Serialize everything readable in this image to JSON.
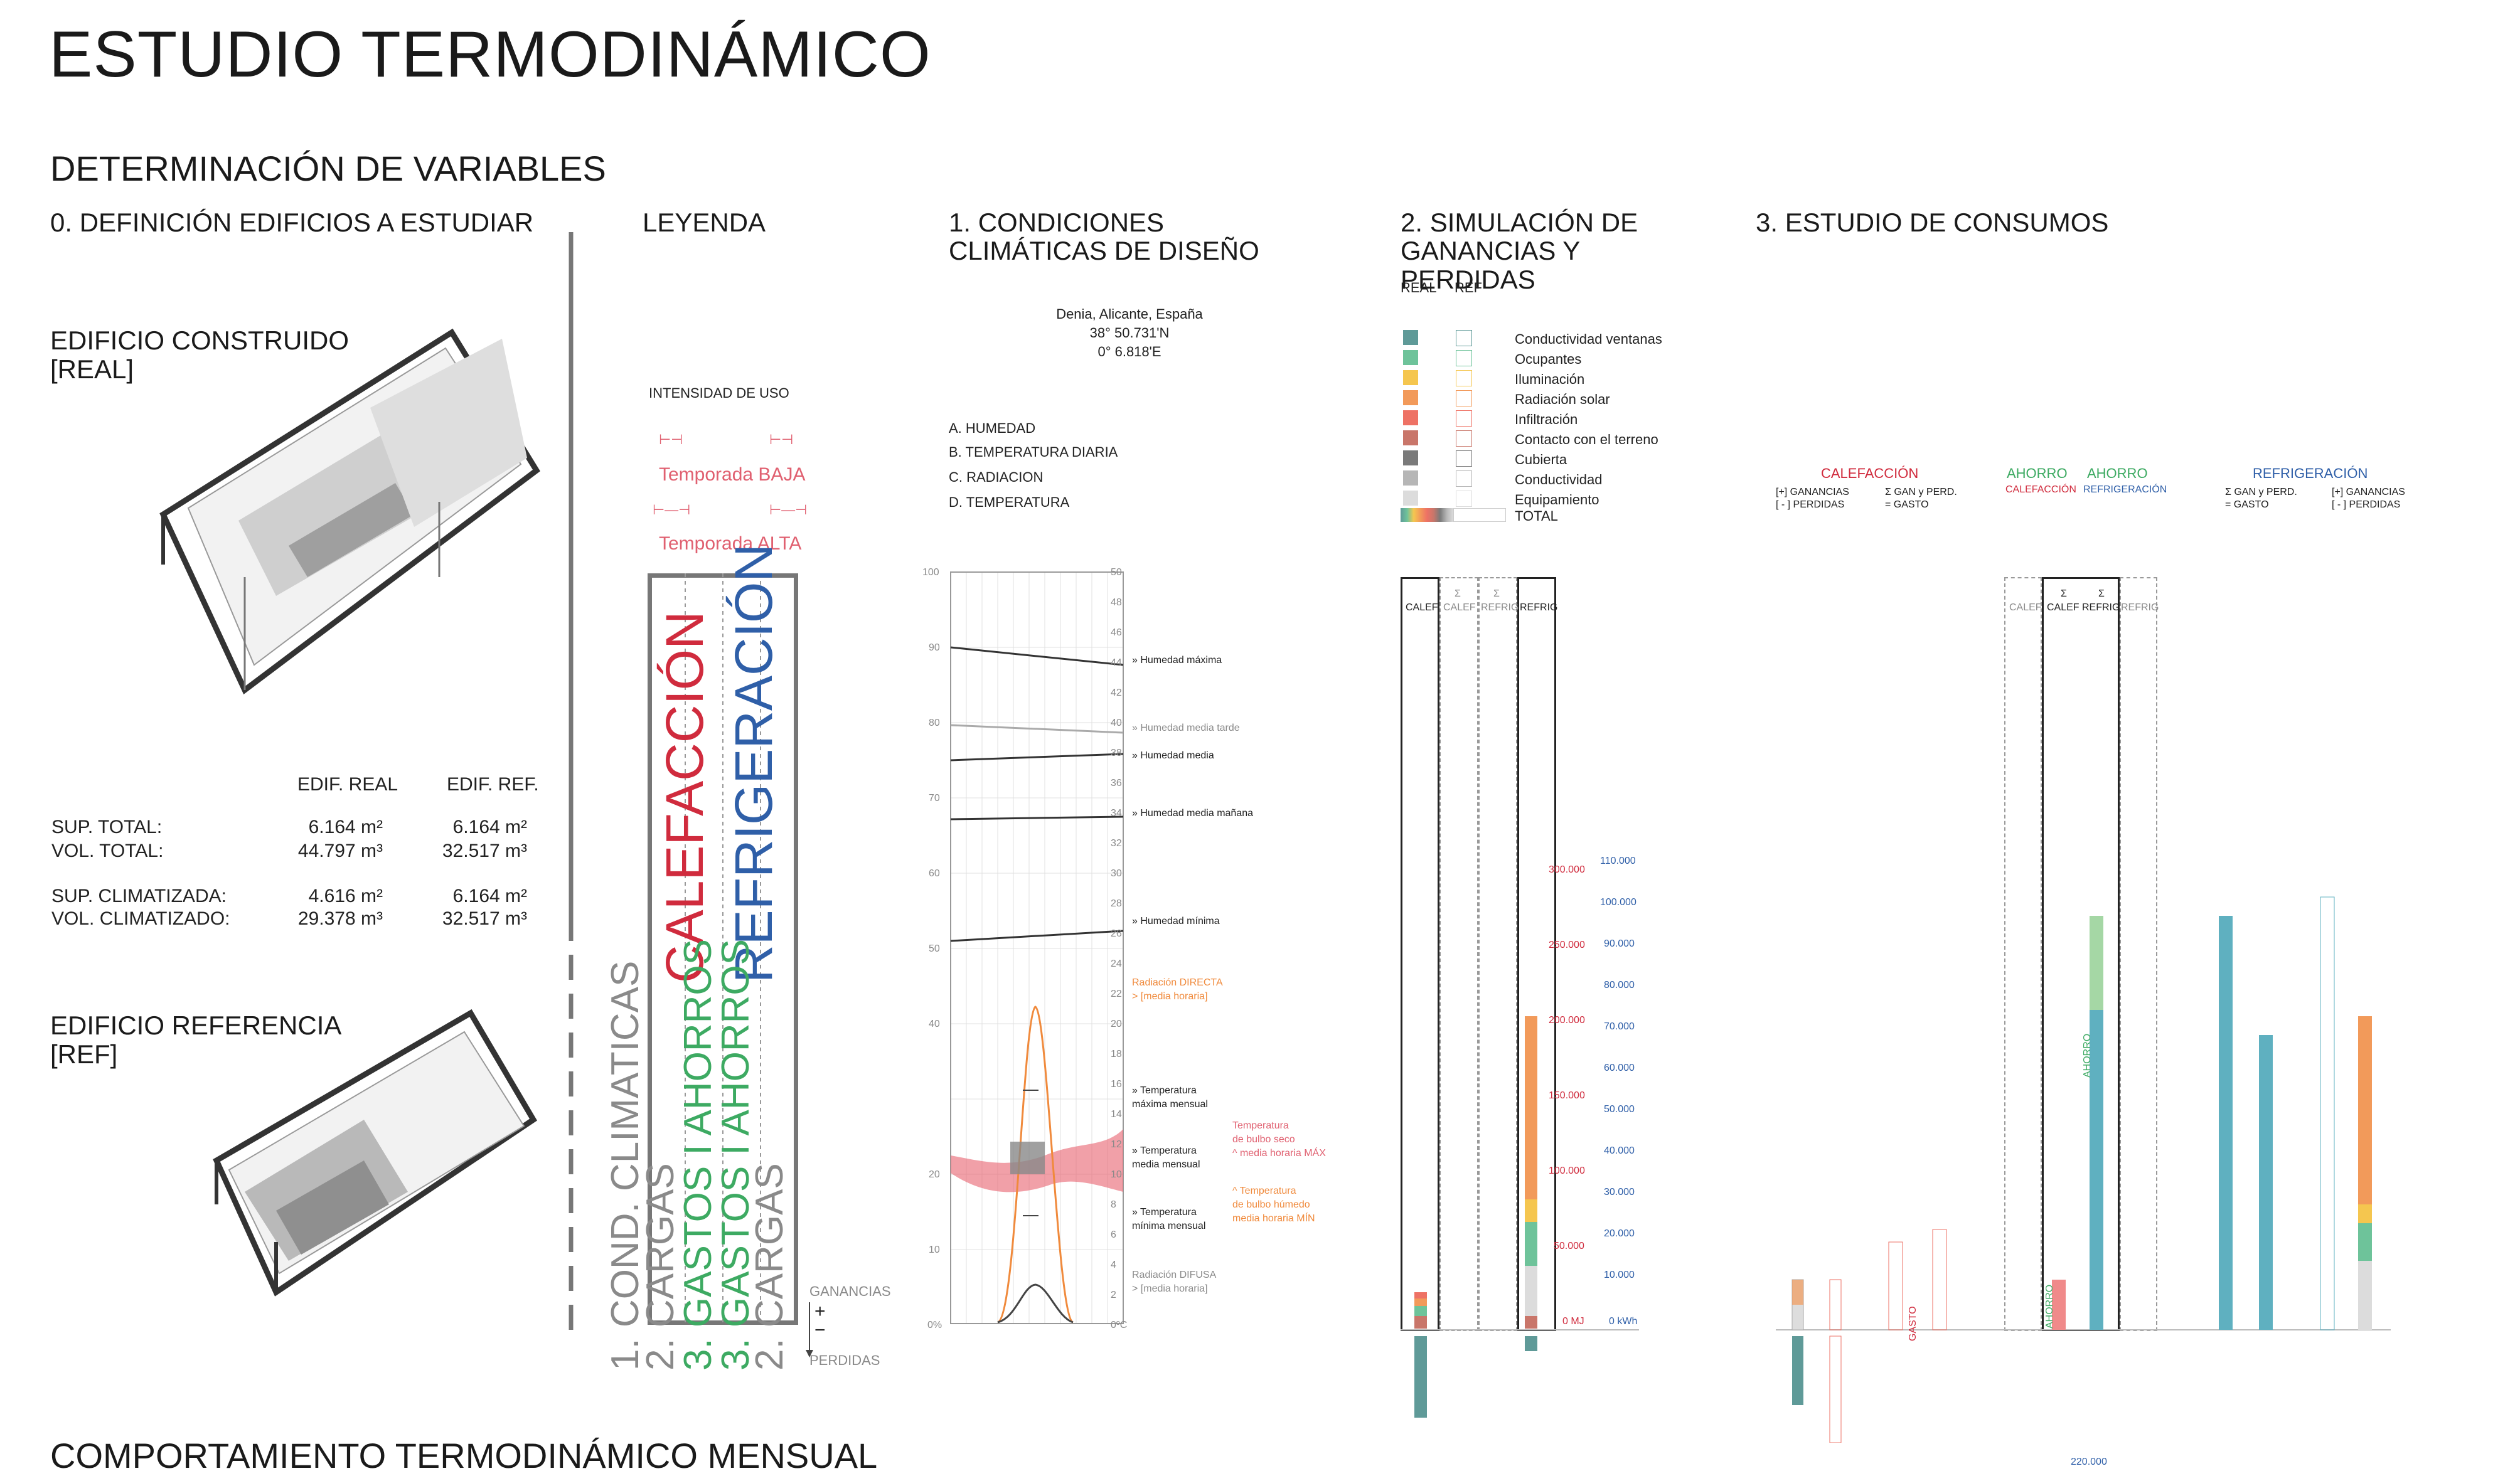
{
  "title": "ESTUDIO TERMODINÁMICO",
  "section_variables": "DETERMINACIÓN DE VARIABLES",
  "col0": {
    "heading": "0. DEFINICIÓN EDIFICIOS A ESTUDIAR",
    "real_title": "EDIFICIO CONSTRUIDO",
    "real_sub": "[REAL]",
    "ref_title": "EDIFICIO REFERENCIA",
    "ref_sub": "[REF]",
    "table": {
      "head_real": "EDIF. REAL",
      "head_ref": "EDIF. REF.",
      "rows": [
        {
          "label": "SUP. TOTAL:",
          "real": "6.164 m²",
          "ref": "6.164 m²"
        },
        {
          "label": "VOL.  TOTAL:",
          "real": "44.797 m³",
          "ref": "32.517 m³"
        },
        {
          "label": "SUP. CLIMATIZADA:",
          "real": "4.616 m²",
          "ref": "6.164 m²"
        },
        {
          "label": "VOL. CLIMATIZADO:",
          "real": "29.378 m³",
          "ref": "32.517 m³"
        }
      ]
    }
  },
  "legend": {
    "heading": "LEYENDA",
    "intensity": "INTENSIDAD DE USO",
    "low": "Temporada BAJA",
    "high": "Temporada ALTA",
    "calef": "CALEFACCIÓN",
    "refrig": "REFRIGERACIÓN",
    "cond": "1. COND. CLIMATICAS",
    "cargas": "2. CARGAS",
    "gastos_calef": "3. GASTOS I AHORROS",
    "gastos_refrig": "3. GASTOS I AHORROS",
    "cargas2": "2. CARGAS",
    "ganancias": "GANANCIAS",
    "perdidas": "PERDIDAS",
    "plus": "+",
    "minus": "−"
  },
  "climate": {
    "heading": "1. CONDICIONES CLIMÁTICAS DE DISEÑO",
    "place": "Denia, Alicante, España",
    "lat": "38° 50.731'N",
    "lon": "0° 6.818'E",
    "list": [
      "A. HUMEDAD",
      "B. TEMPERATURA DIARIA",
      "C. RADIACION",
      "D. TEMPERATURA"
    ],
    "left_ticks": [
      "100",
      "90",
      "80",
      "70",
      "60",
      "50",
      "40",
      "20",
      "10",
      "0%"
    ],
    "right_ticks": [
      "50",
      "48",
      "46",
      "44",
      "42",
      "40",
      "38",
      "36",
      "34",
      "32",
      "30",
      "28",
      "26",
      "24",
      "22",
      "20",
      "18",
      "16",
      "14",
      "12",
      "10",
      "8",
      "6",
      "4",
      "2",
      "0ºC"
    ],
    "labels": {
      "hmax": "» Humedad máxima",
      "hmt": "» Humedad media tarde",
      "hm": "» Humedad media",
      "hmm": "» Humedad media mañana",
      "hmin": "» Humedad mínima",
      "rdir1": "Radiación DIRECTA",
      "rdir2": "> [media horaria]",
      "tmax1": "» Temperatura",
      "tmax2": "máxima mensual",
      "tmed1": "» Temperatura",
      "tmed2": "media mensual",
      "tmin1": "» Temperatura",
      "tmin2": "mínima mensual",
      "rdif1": "Radiación DIFUSA",
      "rdif2": "> [media horaria]",
      "bs1": "Temperatura",
      "bs2": "de bulbo seco",
      "bs3": "^ media horaria MÁX",
      "bh1": "^ Temperatura",
      "bh2": "de bulbo húmedo",
      "bh3": "media horaria MÍN"
    },
    "colors": {
      "humidity": "#444444",
      "radiation": "#f08a3c",
      "temp_band": "#e8606e"
    }
  },
  "simulation": {
    "heading": "2. SIMULACIÓN DE GANANCIAS Y PERDIDAS",
    "col_real": "REAL",
    "col_ref": "REF",
    "legend": [
      {
        "label": "Conductividad ventanas",
        "color": "#5f9a98"
      },
      {
        "label": "Ocupantes",
        "color": "#6ec39a"
      },
      {
        "label": "Iluminación",
        "color": "#f5c64f"
      },
      {
        "label": "Radiación solar",
        "color": "#f29a5a"
      },
      {
        "label": "Infiltración",
        "color": "#ee7265"
      },
      {
        "label": "Contacto con el terreno",
        "color": "#c9766a"
      },
      {
        "label": "Cubierta",
        "color": "#7a7a7a"
      },
      {
        "label": "Conductividad",
        "color": "#b6b6b6"
      },
      {
        "label": "Equipamiento",
        "color": "#dcdcdc"
      }
    ],
    "total_label": "TOTAL",
    "col_heads": {
      "calef": "CALEF",
      "sum": "Σ",
      "calef2": "CALEF",
      "refrig2": "REFRIG",
      "refrig": "REFRIG"
    },
    "mj_ticks": [
      "300.000",
      "250.000",
      "200.000",
      "150.000",
      "100.000",
      "50.000",
      "0 MJ"
    ],
    "kwh_ticks": [
      "110.000",
      "100.000",
      "90.000",
      "80.000",
      "70.000",
      "60.000",
      "50.000",
      "40.000",
      "30.000",
      "20.000",
      "10.000",
      "0 kWh"
    ]
  },
  "consumption": {
    "heading": "3. ESTUDIO DE CONSUMOS",
    "calef_title": "CALEFACCIÓN",
    "calef_n1": "[+] GANANCIAS",
    "calef_n2": "[ - ] PERDIDAS",
    "calef_n3": "Σ GAN y PERD.",
    "calef_n4": "= GASTO",
    "ahorro": "AHORRO",
    "ahorro_calef": "CALEFACCIÓN",
    "ahorro_refrig": "REFRIGERACIÓN",
    "refrig_title": "REFRIGERACIÓN",
    "refrig_n1": "Σ GAN y PERD.",
    "refrig_n2": "= GASTO",
    "refrig_n3": "[+] GANANCIAS",
    "refrig_n4": "[ - ] PERDIDAS",
    "col_calef": "CALEF",
    "col_refrig": "REFRIG",
    "col_sum": "Σ",
    "gasto": "GASTO",
    "ahorro_bar": "AHORRO"
  },
  "section_monthly": "COMPORTAMIENTO TERMODINÁMICO MENSUAL",
  "bottom_tick": "220.000"
}
